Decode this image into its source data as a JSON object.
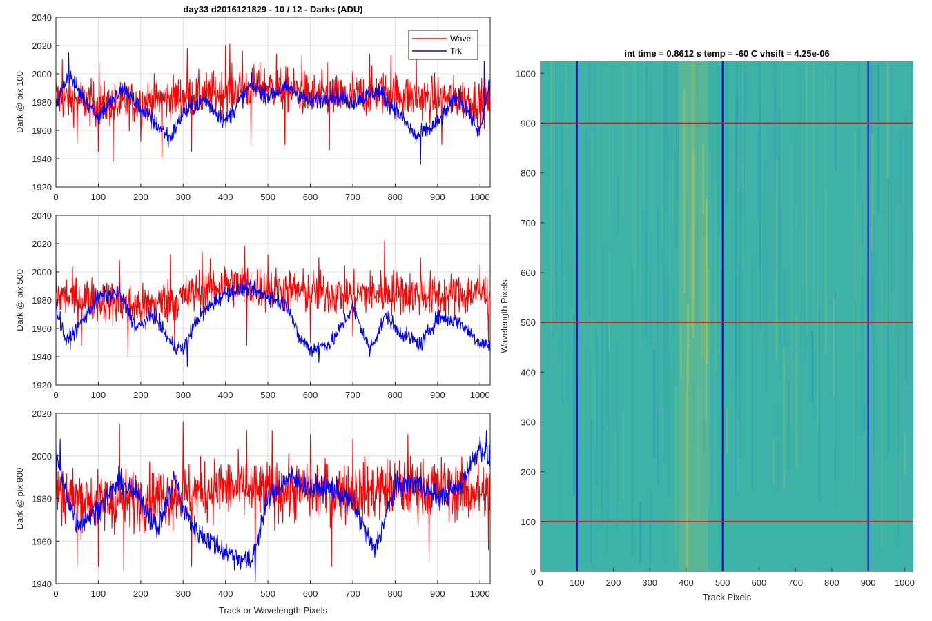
{
  "chart_data": [
    {
      "id": "p1",
      "type": "line",
      "title": "day33 d2016121829 - 10 / 12 - Darks (ADU)",
      "xlabel": "",
      "ylabel": "Dark @ pix 100",
      "xlim": [
        0,
        1024
      ],
      "ylim": [
        1920,
        2040
      ],
      "xticks": [
        0,
        100,
        200,
        300,
        400,
        500,
        600,
        700,
        800,
        900,
        1000
      ],
      "yticks": [
        1920,
        1940,
        1960,
        1980,
        2000,
        2020,
        2040
      ],
      "grid": true,
      "legend": "top-right",
      "series": [
        {
          "name": "Wave",
          "color": "#ff0000",
          "x_range": [
            0,
            1024
          ],
          "noise": 11,
          "trend": [
            [
              0,
              1982
            ],
            [
              50,
              1982
            ],
            [
              100,
              1978
            ],
            [
              150,
              1978
            ],
            [
              200,
              1980
            ],
            [
              250,
              1982
            ],
            [
              300,
              1984
            ],
            [
              350,
              1985
            ],
            [
              400,
              1987
            ],
            [
              450,
              1990
            ],
            [
              500,
              1991
            ],
            [
              550,
              1988
            ],
            [
              600,
              1985
            ],
            [
              650,
              1984
            ],
            [
              700,
              1983
            ],
            [
              750,
              1987
            ],
            [
              800,
              1986
            ],
            [
              850,
              1983
            ],
            [
              900,
              1983
            ],
            [
              950,
              1982
            ],
            [
              1024,
              1980
            ]
          ],
          "spikes": [
            [
              0,
              1996
            ],
            [
              15,
              2010
            ],
            [
              50,
              1951
            ],
            [
              100,
              1945
            ],
            [
              102,
              2008
            ],
            [
              135,
              1938
            ],
            [
              200,
              1952
            ],
            [
              250,
              1941
            ],
            [
              310,
              2018
            ],
            [
              320,
              1945
            ],
            [
              400,
              2020
            ],
            [
              410,
              2021
            ],
            [
              440,
              2016
            ],
            [
              460,
              1949
            ],
            [
              520,
              2014
            ],
            [
              540,
              1950
            ],
            [
              580,
              2013
            ],
            [
              640,
              2008
            ],
            [
              645,
              1946
            ],
            [
              700,
              2002
            ],
            [
              740,
              2014
            ],
            [
              790,
              2013
            ],
            [
              850,
              2012
            ],
            [
              910,
              1950
            ],
            [
              1024,
              1958
            ]
          ]
        },
        {
          "name": "Trk",
          "color": "#0000ff",
          "x_range": [
            0,
            1024
          ],
          "noise": 4.5,
          "trend": [
            [
              0,
              1978
            ],
            [
              30,
              2000
            ],
            [
              60,
              1985
            ],
            [
              100,
              1970
            ],
            [
              160,
              1990
            ],
            [
              200,
              1975
            ],
            [
              270,
              1955
            ],
            [
              300,
              1972
            ],
            [
              350,
              1982
            ],
            [
              400,
              1966
            ],
            [
              460,
              1992
            ],
            [
              500,
              1985
            ],
            [
              550,
              1990
            ],
            [
              600,
              1980
            ],
            [
              650,
              1985
            ],
            [
              700,
              1980
            ],
            [
              760,
              1988
            ],
            [
              800,
              1975
            ],
            [
              850,
              1955
            ],
            [
              900,
              1965
            ],
            [
              950,
              1985
            ],
            [
              1000,
              1958
            ],
            [
              1024,
              1995
            ]
          ],
          "spikes": [
            [
              30,
              2015
            ],
            [
              265,
              1948
            ],
            [
              860,
              1936
            ],
            [
              1010,
              2009
            ]
          ]
        }
      ]
    },
    {
      "id": "p2",
      "type": "line",
      "title": "",
      "xlabel": "",
      "ylabel": "Dark @ pix 500",
      "xlim": [
        0,
        1024
      ],
      "ylim": [
        1920,
        2040
      ],
      "xticks": [
        0,
        100,
        200,
        300,
        400,
        500,
        600,
        700,
        800,
        900,
        1000
      ],
      "yticks": [
        1920,
        1940,
        1960,
        1980,
        2000,
        2020,
        2040
      ],
      "grid": true,
      "series": [
        {
          "name": "Wave",
          "color": "#ff0000",
          "x_range": [
            0,
            1024
          ],
          "noise": 11,
          "trend": [
            [
              0,
              1983
            ],
            [
              100,
              1980
            ],
            [
              200,
              1975
            ],
            [
              300,
              1982
            ],
            [
              400,
              1992
            ],
            [
              500,
              1988
            ],
            [
              600,
              1985
            ],
            [
              700,
              1984
            ],
            [
              800,
              1986
            ],
            [
              900,
              1983
            ],
            [
              1024,
              1985
            ]
          ],
          "spikes": [
            [
              0,
              2008
            ],
            [
              60,
              1948
            ],
            [
              150,
              2008
            ],
            [
              170,
              1940
            ],
            [
              270,
              2012
            ],
            [
              280,
              1944
            ],
            [
              345,
              2014
            ],
            [
              445,
              2018
            ],
            [
              450,
              1948
            ],
            [
              500,
              2012
            ],
            [
              600,
              1950
            ],
            [
              620,
              2010
            ],
            [
              700,
              1955
            ],
            [
              775,
              2022
            ],
            [
              860,
              2010
            ],
            [
              1000,
              2005
            ],
            [
              1020,
              1950
            ]
          ]
        },
        {
          "name": "Trk",
          "color": "#0000ff",
          "x_range": [
            0,
            1024
          ],
          "noise": 4,
          "trend": [
            [
              0,
              1975
            ],
            [
              25,
              1950
            ],
            [
              50,
              1960
            ],
            [
              100,
              1982
            ],
            [
              150,
              1985
            ],
            [
              190,
              1960
            ],
            [
              230,
              1970
            ],
            [
              270,
              1950
            ],
            [
              300,
              1945
            ],
            [
              330,
              1965
            ],
            [
              360,
              1975
            ],
            [
              400,
              1985
            ],
            [
              450,
              1988
            ],
            [
              500,
              1983
            ],
            [
              550,
              1975
            ],
            [
              570,
              1955
            ],
            [
              600,
              1945
            ],
            [
              650,
              1950
            ],
            [
              700,
              1975
            ],
            [
              740,
              1945
            ],
            [
              780,
              1970
            ],
            [
              800,
              1960
            ],
            [
              860,
              1948
            ],
            [
              900,
              1968
            ],
            [
              950,
              1965
            ],
            [
              1000,
              1950
            ],
            [
              1024,
              1948
            ]
          ],
          "spikes": [
            [
              310,
              1933
            ],
            [
              620,
              1936
            ]
          ]
        }
      ]
    },
    {
      "id": "p3",
      "type": "line",
      "title": "",
      "xlabel": "Track or Wavelength Pixels",
      "ylabel": "Dark @ pix 900",
      "xlim": [
        0,
        1024
      ],
      "ylim": [
        1940,
        2020
      ],
      "xticks": [
        0,
        100,
        200,
        300,
        400,
        500,
        600,
        700,
        800,
        900,
        1000
      ],
      "yticks": [
        1940,
        1960,
        1980,
        2000,
        2020
      ],
      "grid": true,
      "series": [
        {
          "name": "Wave",
          "color": "#ff0000",
          "x_range": [
            0,
            1024
          ],
          "noise": 10,
          "trend": [
            [
              0,
              1983
            ],
            [
              100,
              1978
            ],
            [
              200,
              1980
            ],
            [
              300,
              1982
            ],
            [
              400,
              1985
            ],
            [
              500,
              1983
            ],
            [
              600,
              1984
            ],
            [
              700,
              1983
            ],
            [
              800,
              1985
            ],
            [
              900,
              1985
            ],
            [
              1024,
              1982
            ]
          ],
          "spikes": [
            [
              0,
              2005
            ],
            [
              50,
              1948
            ],
            [
              100,
              1948
            ],
            [
              150,
              2015
            ],
            [
              160,
              1946
            ],
            [
              300,
              2016
            ],
            [
              320,
              1948
            ],
            [
              450,
              2012
            ],
            [
              470,
              1944
            ],
            [
              510,
              2012
            ],
            [
              600,
              2010
            ],
            [
              650,
              1948
            ],
            [
              700,
              2008
            ],
            [
              830,
              2010
            ],
            [
              880,
              1950
            ],
            [
              1020,
              1956
            ]
          ]
        },
        {
          "name": "Trk",
          "color": "#0000ff",
          "x_range": [
            0,
            1024
          ],
          "noise": 4,
          "trend": [
            [
              0,
              2000
            ],
            [
              20,
              1985
            ],
            [
              50,
              1968
            ],
            [
              100,
              1975
            ],
            [
              150,
              1988
            ],
            [
              200,
              1980
            ],
            [
              240,
              1965
            ],
            [
              280,
              1990
            ],
            [
              300,
              1975
            ],
            [
              330,
              1965
            ],
            [
              400,
              1955
            ],
            [
              460,
              1950
            ],
            [
              500,
              1980
            ],
            [
              550,
              1990
            ],
            [
              600,
              1985
            ],
            [
              650,
              1985
            ],
            [
              700,
              1978
            ],
            [
              750,
              1955
            ],
            [
              800,
              1985
            ],
            [
              850,
              1988
            ],
            [
              900,
              1980
            ],
            [
              950,
              1985
            ],
            [
              1000,
              2005
            ],
            [
              1024,
              1998
            ]
          ],
          "spikes": [
            [
              10,
              2008
            ],
            [
              470,
              1941
            ],
            [
              1015,
              2012
            ]
          ]
        }
      ]
    },
    {
      "id": "p4",
      "type": "heatmap",
      "title": "int time = 0.8612 s    temp = -60 C    vhsift = 4.25e-06",
      "xlabel": "Track Pixels",
      "ylabel": "Wavelength Pixels",
      "xlim": [
        0,
        1024
      ],
      "ylim": [
        0,
        1024
      ],
      "xticks": [
        0,
        100,
        200,
        300,
        400,
        500,
        600,
        700,
        800,
        900,
        1000
      ],
      "yticks": [
        0,
        100,
        200,
        300,
        400,
        500,
        600,
        700,
        800,
        900,
        1000
      ],
      "base_color": "#3fb2a8",
      "bright_band_x": [
        380,
        460
      ],
      "vertical_lines": [
        {
          "x": 100,
          "color": "#0000cc"
        },
        {
          "x": 500,
          "color": "#0000cc"
        },
        {
          "x": 900,
          "color": "#0000cc"
        }
      ],
      "horizontal_lines": [
        {
          "y": 100,
          "color": "#ff0000"
        },
        {
          "y": 500,
          "color": "#ff0000"
        },
        {
          "y": 900,
          "color": "#ff0000"
        }
      ]
    }
  ]
}
